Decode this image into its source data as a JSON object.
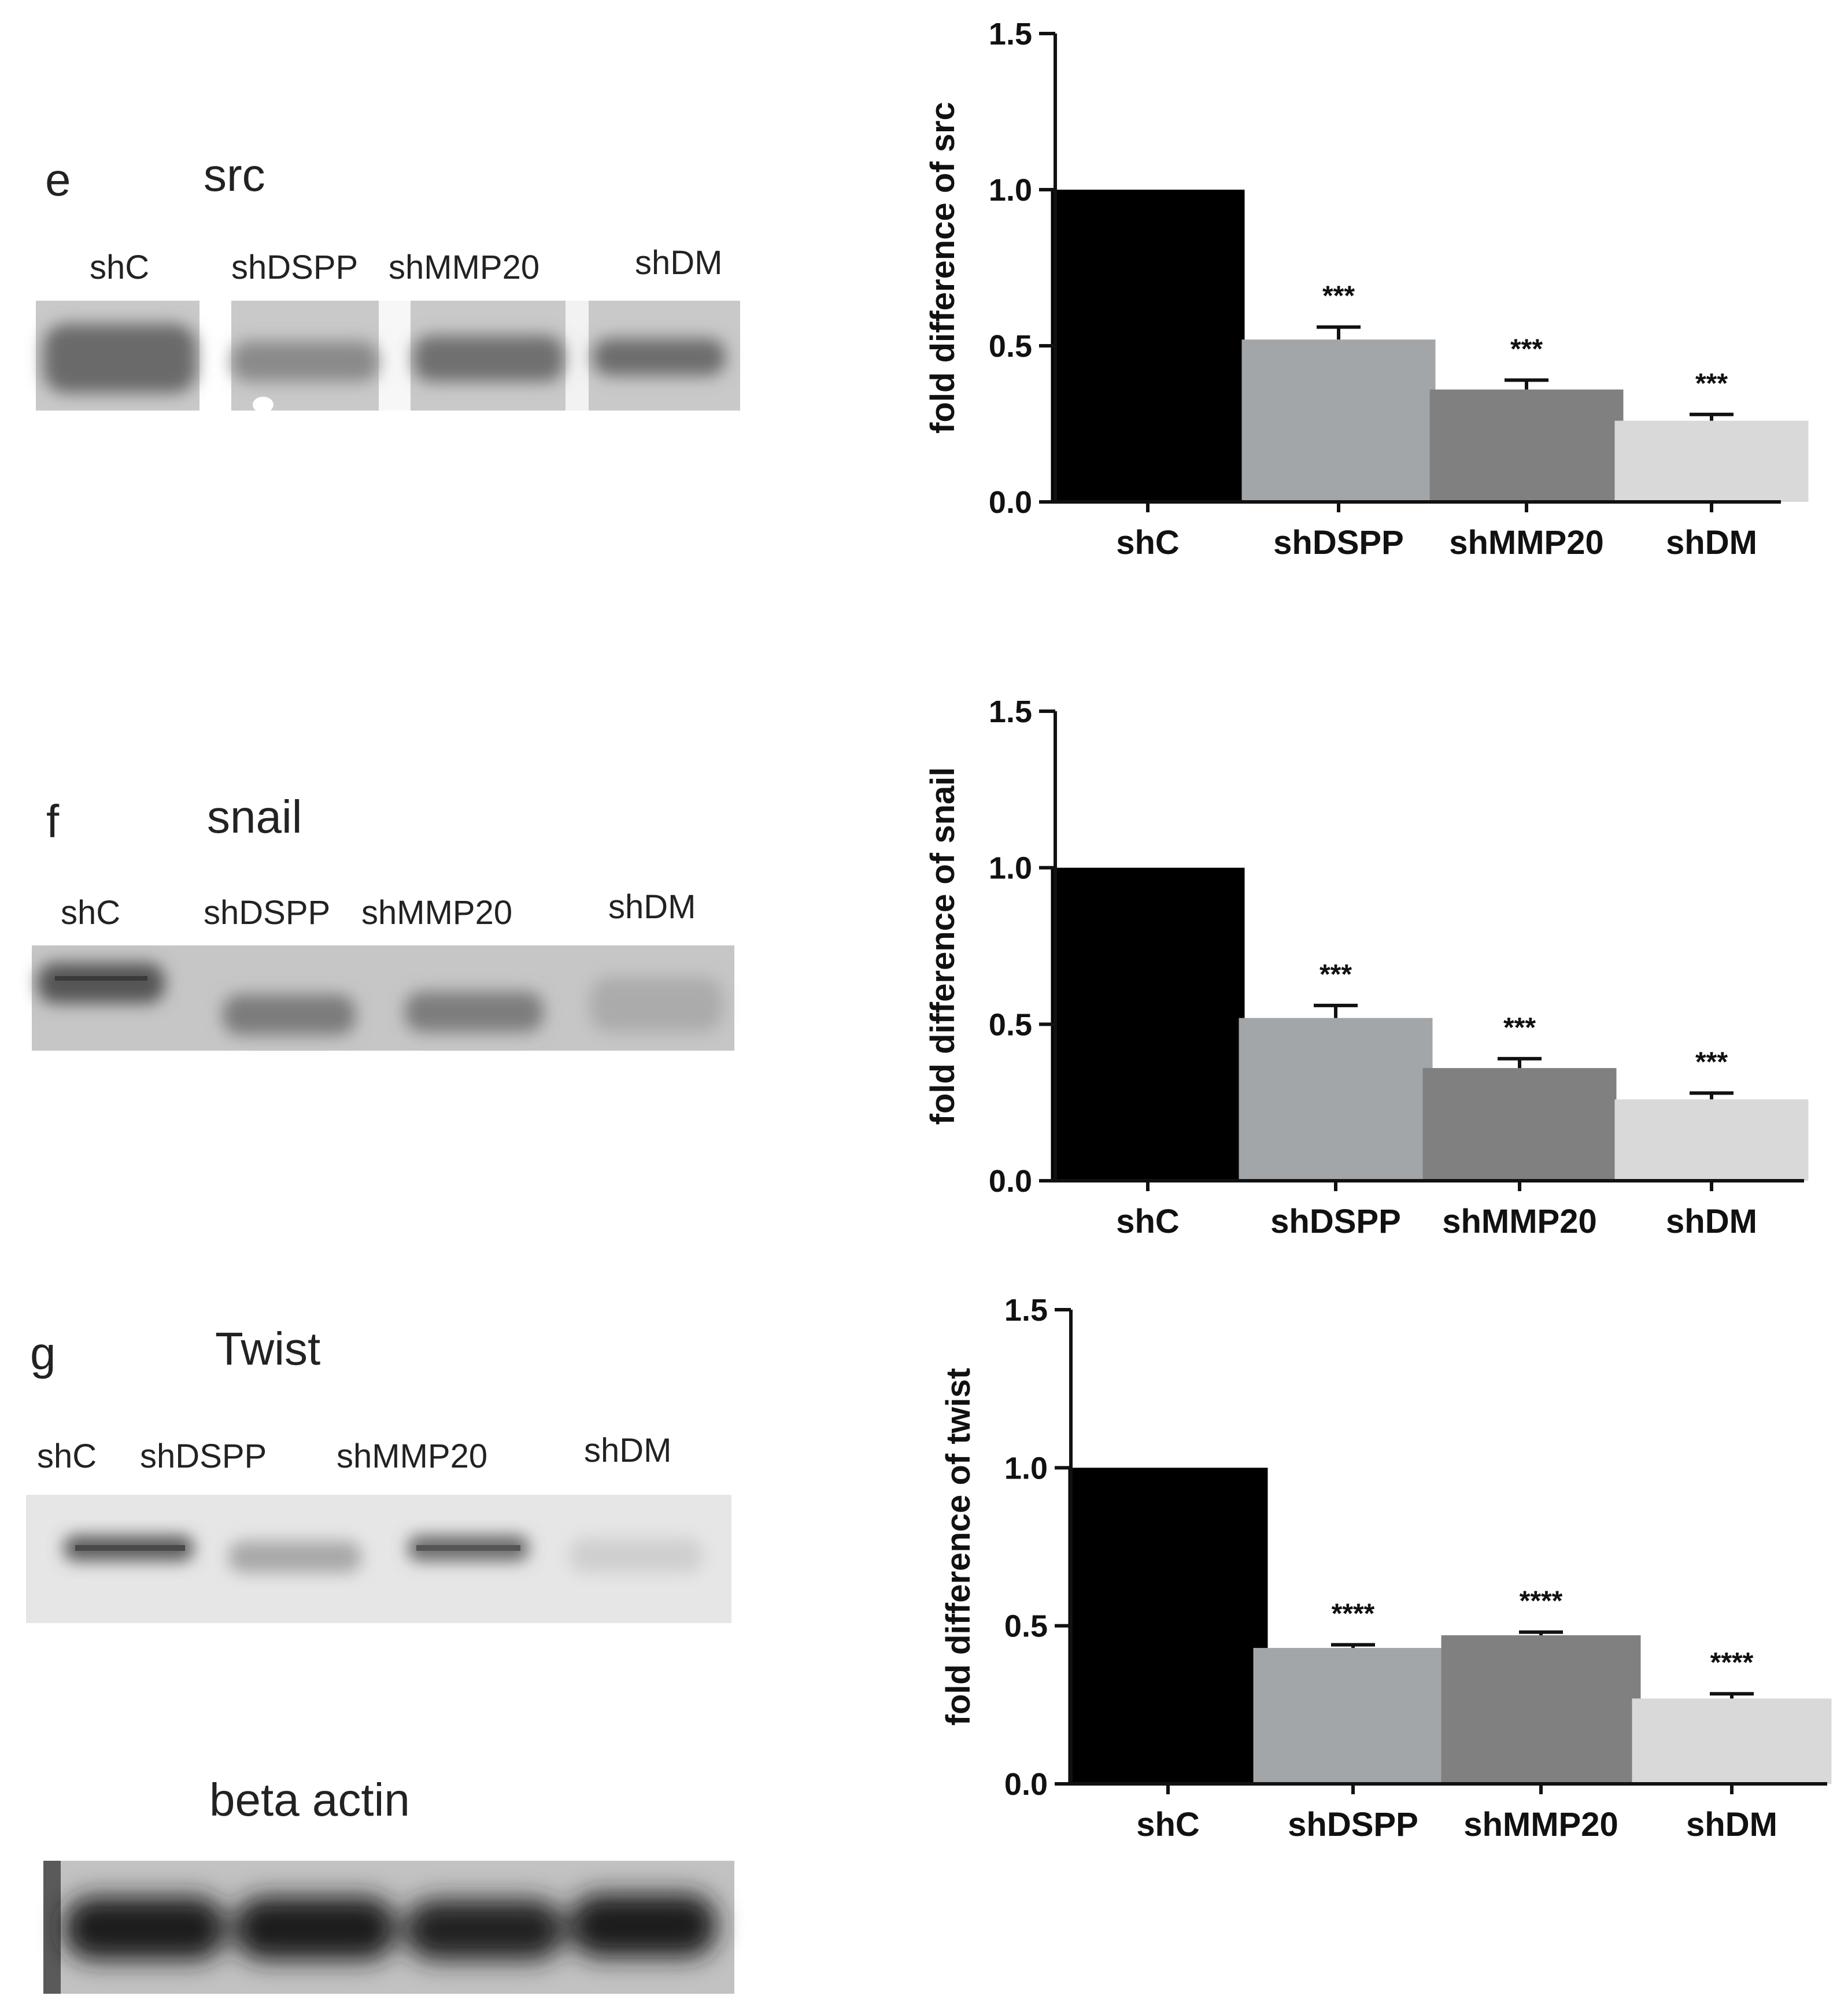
{
  "blots": [
    {
      "letter": "e",
      "title": "src",
      "lanes": [
        "shC",
        "shDSPP",
        "shMMP20",
        "shDM"
      ]
    },
    {
      "letter": "f",
      "title": "snail",
      "lanes": [
        "shC",
        "shDSPP",
        "shMMP20",
        "shDM"
      ]
    },
    {
      "letter": "g",
      "title": "Twist",
      "lanes": [
        "shC",
        "shDSPP",
        "shMMP20",
        "shDM"
      ]
    },
    {
      "letter": "",
      "title": "beta actin",
      "lanes": []
    }
  ],
  "chart_data": [
    {
      "type": "bar",
      "categories": [
        "shC",
        "shDSPP",
        "shMMP20",
        "shDM"
      ],
      "values": [
        1.0,
        0.52,
        0.36,
        0.26
      ],
      "errors": [
        0.0,
        0.04,
        0.03,
        0.02
      ],
      "significance": [
        "",
        "***",
        "***",
        "***"
      ],
      "ylabel": "fold difference of src",
      "ylim": [
        0,
        1.5
      ],
      "yticks": [
        "0.0",
        "0.5",
        "1.0",
        "1.5"
      ],
      "colors": [
        "#000000",
        "#a3a6a8",
        "#808080",
        "#d9d9d9"
      ]
    },
    {
      "type": "bar",
      "categories": [
        "shC",
        "shDSPP",
        "shMMP20",
        "shDM"
      ],
      "values": [
        1.0,
        0.52,
        0.36,
        0.26
      ],
      "errors": [
        0.0,
        0.04,
        0.03,
        0.02
      ],
      "significance": [
        "",
        "***",
        "***",
        "***"
      ],
      "ylabel": "fold difference of snail",
      "ylim": [
        0,
        1.5
      ],
      "yticks": [
        "0.0",
        "0.5",
        "1.0",
        "1.5"
      ],
      "colors": [
        "#000000",
        "#a3a6a8",
        "#808080",
        "#d9d9d9"
      ]
    },
    {
      "type": "bar",
      "categories": [
        "shC",
        "shDSPP",
        "shMMP20",
        "shDM"
      ],
      "values": [
        1.0,
        0.43,
        0.47,
        0.27
      ],
      "errors": [
        0.0,
        0.01,
        0.01,
        0.015
      ],
      "significance": [
        "",
        "****",
        "****",
        "****"
      ],
      "ylabel": "fold difference of twist",
      "ylim": [
        0,
        1.5
      ],
      "yticks": [
        "0.0",
        "0.5",
        "1.0",
        "1.5"
      ],
      "colors": [
        "#000000",
        "#a3a6a8",
        "#808080",
        "#d9d9d9"
      ]
    }
  ]
}
